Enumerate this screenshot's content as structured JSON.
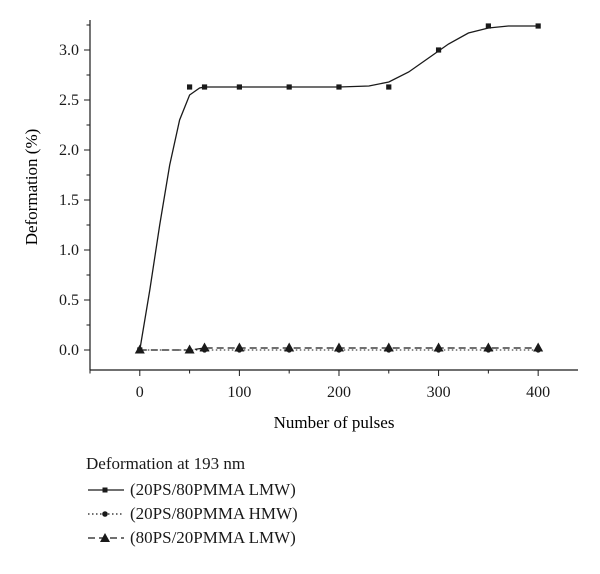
{
  "chart_data": {
    "type": "line",
    "xlabel": "Number of pulses",
    "ylabel": "Deformation (%)",
    "xlim": [
      -50,
      440
    ],
    "ylim": [
      -0.2,
      3.3
    ],
    "x_ticks": [
      0,
      100,
      200,
      300,
      400
    ],
    "x_tick_labels": [
      "0",
      "100",
      "200",
      "300",
      "400"
    ],
    "y_ticks": [
      0.0,
      0.5,
      1.0,
      1.5,
      2.0,
      2.5,
      3.0
    ],
    "y_tick_labels": [
      "0.0",
      "0.5",
      "1.0",
      "1.5",
      "2.0",
      "2.5",
      "3.0"
    ],
    "grid": false,
    "legend_title": "Deformation at 193 nm",
    "legend_placement": "bottom-left, below plot",
    "series": [
      {
        "name": "(20PS/80PMMA LMW)",
        "line": "solid",
        "marker": "square",
        "x": [
          0,
          50,
          65,
          100,
          150,
          200,
          250,
          300,
          350,
          400
        ],
        "y": [
          0.0,
          2.63,
          2.63,
          2.63,
          2.63,
          2.63,
          2.63,
          3.0,
          3.24,
          3.24
        ],
        "fit_curve": {
          "x": [
            0,
            10,
            20,
            30,
            40,
            50,
            60,
            65,
            80,
            100,
            150,
            200,
            230,
            250,
            270,
            290,
            310,
            330,
            350,
            370,
            390,
            400
          ],
          "y": [
            0.0,
            0.6,
            1.25,
            1.85,
            2.3,
            2.55,
            2.62,
            2.63,
            2.63,
            2.63,
            2.63,
            2.63,
            2.64,
            2.68,
            2.78,
            2.92,
            3.06,
            3.17,
            3.22,
            3.24,
            3.24,
            3.24
          ]
        }
      },
      {
        "name": "(20PS/80PMMA HMW)",
        "line": "dotted",
        "marker": "circle",
        "x": [
          0,
          50,
          65,
          100,
          150,
          200,
          250,
          300,
          350,
          400
        ],
        "y": [
          0.0,
          0.0,
          0.0,
          0.0,
          0.0,
          0.0,
          0.0,
          0.0,
          0.0,
          0.0
        ]
      },
      {
        "name": "(80PS/20PMMA LMW)",
        "line": "dashed",
        "marker": "triangle",
        "x": [
          0,
          50,
          65,
          100,
          150,
          200,
          250,
          300,
          350,
          400
        ],
        "y": [
          0.0,
          0.0,
          0.02,
          0.02,
          0.02,
          0.02,
          0.02,
          0.02,
          0.02,
          0.02
        ]
      }
    ]
  }
}
